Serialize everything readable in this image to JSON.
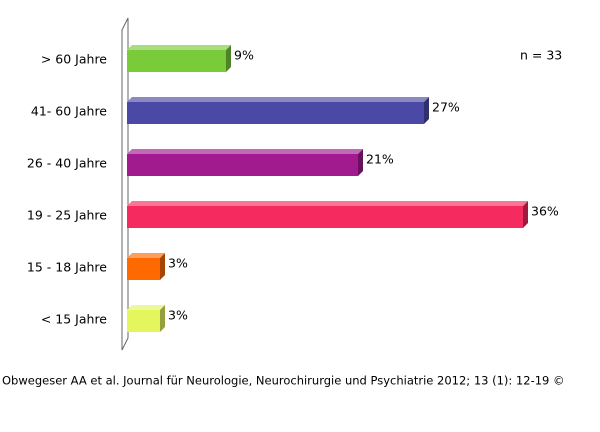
{
  "chart_data": {
    "type": "bar",
    "orientation": "horizontal",
    "categories": [
      "> 60 Jahre",
      "41- 60 Jahre",
      "26 - 40 Jahre",
      "19 - 25 Jahre",
      "15 - 18 Jahre",
      "< 15 Jahre"
    ],
    "values": [
      9,
      27,
      21,
      36,
      3,
      3
    ],
    "value_labels": [
      "9%",
      "27%",
      "21%",
      "36%",
      "3%",
      "3%"
    ],
    "colors": [
      "#7acb3a",
      "#4a4aa6",
      "#a11a8e",
      "#f52a5e",
      "#ff6a00",
      "#e4f55e"
    ],
    "annotation": "n = 33",
    "source": "Obwegeser AA et al. Journal für Neurologie, Neurochirurgie und Psychiatrie 2012; 13 (1): 12-19 ©"
  }
}
